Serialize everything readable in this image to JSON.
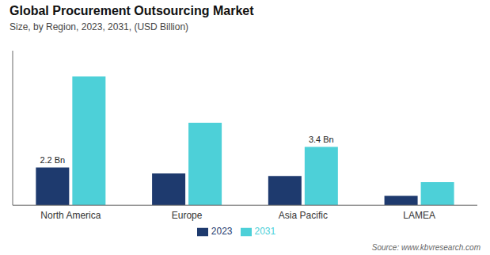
{
  "chart_data": {
    "type": "bar",
    "title": "Global Procurement Outsourcing Market",
    "subtitle": "Size, by Region, 2023, 2031, (USD Billion)",
    "source": "Source: www.kbvresearch.com",
    "categories": [
      "North America",
      "Europe",
      "Asia Pacific",
      "LAMEA"
    ],
    "series": [
      {
        "name": "2023",
        "color": "#1e3a6e",
        "values": [
          2.2,
          1.85,
          1.7,
          0.55
        ]
      },
      {
        "name": "2031",
        "color": "#4dd0d8",
        "values": [
          7.5,
          4.8,
          3.4,
          1.35
        ]
      }
    ],
    "ylim": [
      0,
      9.0
    ],
    "tick_labels": "x",
    "grid": false,
    "legend": "bottom",
    "annotations": [
      {
        "text": "2.2 Bn",
        "category": "North America",
        "series": "2023",
        "value": 2.2
      },
      {
        "text": "3.4 Bn",
        "category": "Asia Pacific",
        "series": "2031",
        "value": 3.4
      }
    ]
  }
}
